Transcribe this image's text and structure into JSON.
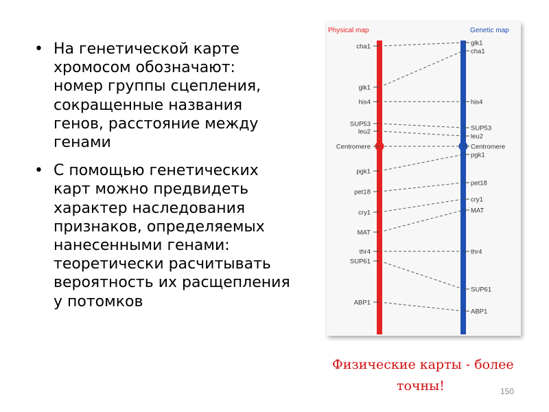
{
  "bullets": [
    "На генетической карте хромосом обозначают: номер группы сцепления, сокращенные названия генов, расстояние между генами",
    "С помощью генетических карт можно предвидеть характер наследования признаков, определяемых нанесенными генами: теоретически расчитывать вероятность их расщепления у потомков"
  ],
  "bullet_lines": [
    [
      "На генетической карте",
      "хромосом обозначают:",
      "номер группы сцепления,",
      "сокращенные названия",
      "генов, расстояние между",
      "генами"
    ],
    [
      "С помощью генетических",
      "карт можно предвидеть",
      "характер наследования",
      "признаков, определяемых",
      "нанесенными генами:",
      "теоретически расчитывать",
      "вероятность их расщепления",
      "у потомков"
    ]
  ],
  "diagram": {
    "physical_title": "Physical map",
    "genetic_title": "Genetic map",
    "physical_color": "#e52421",
    "genetic_color": "#1f4fb3",
    "physical_labels": [
      "cha1",
      "glk1",
      "his4",
      "SUP53",
      "leu2",
      "Centromere",
      "pgk1",
      "pet18",
      "cry1",
      "MAT",
      "thr4",
      "SUP61",
      "ABP1"
    ],
    "genetic_labels": [
      "glk1",
      "cha1",
      "his4",
      "SUP53",
      "leu2",
      "Centromere",
      "pgk1",
      "pet18",
      "cry1",
      "MAT",
      "thr4",
      "SUP61",
      "ABP1"
    ]
  },
  "caption": {
    "line1": "Физические карты - более",
    "line2": "точны!"
  },
  "page_number": "150"
}
